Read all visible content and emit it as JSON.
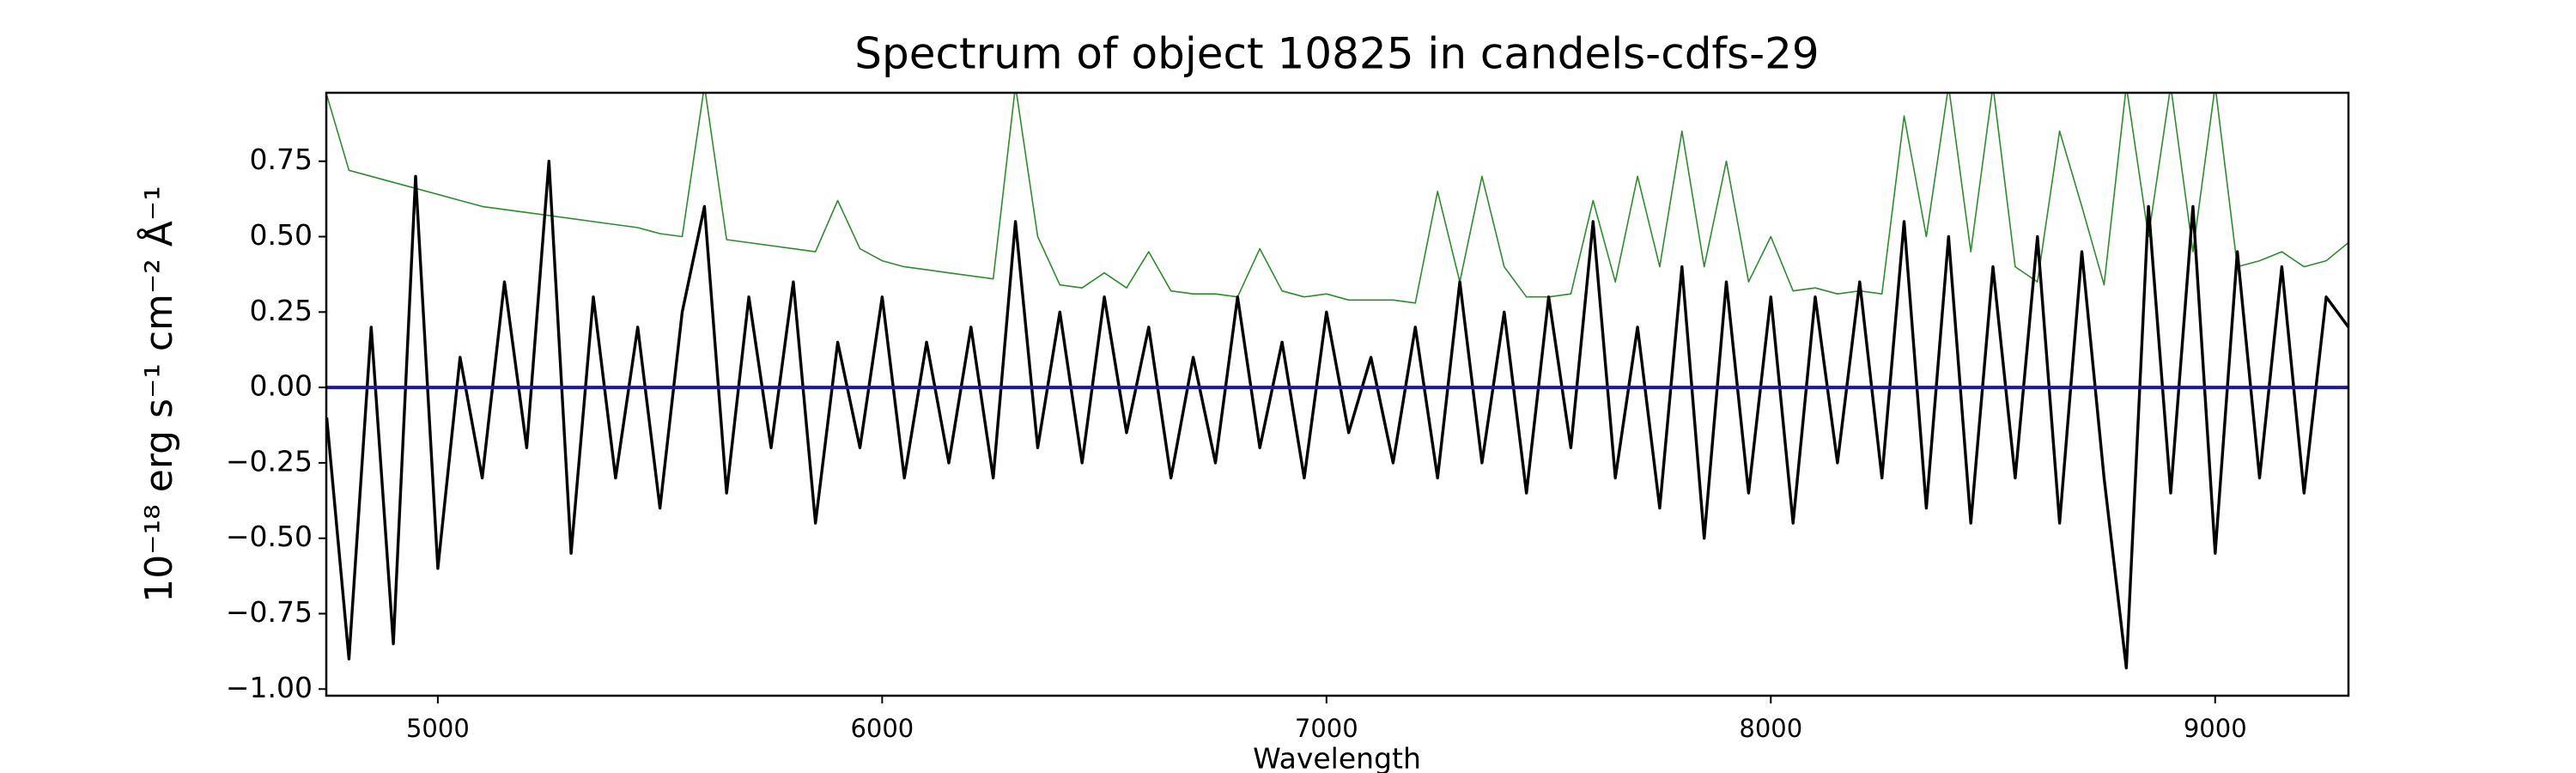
{
  "chart_data": {
    "type": "line",
    "title": "Spectrum of object 10825 in candels-cdfs-29",
    "xlabel": "Wavelength",
    "ylabel": "10⁻¹⁸ erg s⁻¹ cm⁻² Å⁻¹",
    "xlim": [
      4749,
      9300
    ],
    "ylim": [
      -1.022,
      0.977
    ],
    "xticks": [
      5000,
      6000,
      7000,
      8000,
      9000
    ],
    "yticks": [
      {
        "value": -1,
        "label": "−1.00"
      },
      {
        "value": -0.75,
        "label": "−0.75"
      },
      {
        "value": -0.5,
        "label": "−0.50"
      },
      {
        "value": -0.25,
        "label": "−0.25"
      },
      {
        "value": 0,
        "label": "0.00"
      },
      {
        "value": 0.25,
        "label": "0.25"
      },
      {
        "value": 0.5,
        "label": "0.50"
      },
      {
        "value": 0.75,
        "label": "0.75"
      }
    ],
    "grid": false,
    "series": [
      {
        "color": "#2e8b2e",
        "width": 1.6,
        "x": [
          4750,
          4800,
          4850,
          4900,
          4950,
          5000,
          5050,
          5100,
          5150,
          5200,
          5250,
          5300,
          5350,
          5400,
          5450,
          5500,
          5550,
          5600,
          5650,
          5700,
          5750,
          5800,
          5850,
          5900,
          5950,
          6000,
          6050,
          6100,
          6150,
          6200,
          6250,
          6300,
          6350,
          6400,
          6450,
          6500,
          6550,
          6600,
          6650,
          6700,
          6750,
          6800,
          6850,
          6900,
          6950,
          7000,
          7050,
          7100,
          7150,
          7200,
          7250,
          7300,
          7350,
          7400,
          7450,
          7500,
          7550,
          7600,
          7650,
          7700,
          7750,
          7800,
          7850,
          7900,
          7950,
          8000,
          8050,
          8100,
          8150,
          8200,
          8250,
          8300,
          8350,
          8400,
          8450,
          8500,
          8550,
          8600,
          8650,
          8700,
          8750,
          8800,
          8850,
          8900,
          8950,
          9000,
          9050,
          9100,
          9150,
          9200,
          9250,
          9300
        ],
        "values": [
          0.97,
          0.72,
          0.7,
          0.68,
          0.66,
          0.64,
          0.62,
          0.6,
          0.59,
          0.58,
          0.57,
          0.56,
          0.55,
          0.54,
          0.53,
          0.51,
          0.5,
          1.0,
          0.49,
          0.48,
          0.47,
          0.46,
          0.45,
          0.62,
          0.46,
          0.42,
          0.4,
          0.39,
          0.38,
          0.37,
          0.36,
          1.0,
          0.5,
          0.34,
          0.33,
          0.38,
          0.33,
          0.45,
          0.32,
          0.31,
          0.31,
          0.3,
          0.46,
          0.32,
          0.3,
          0.31,
          0.29,
          0.29,
          0.29,
          0.28,
          0.65,
          0.35,
          0.7,
          0.4,
          0.3,
          0.3,
          0.31,
          0.62,
          0.35,
          0.7,
          0.4,
          0.85,
          0.4,
          0.75,
          0.35,
          0.5,
          0.32,
          0.33,
          0.31,
          0.32,
          0.31,
          0.9,
          0.5,
          1.0,
          0.45,
          1.0,
          0.4,
          0.35,
          0.85,
          0.6,
          0.34,
          1.0,
          0.5,
          1.0,
          0.45,
          1.0,
          0.4,
          0.42,
          0.45,
          0.4,
          0.42,
          0.48
        ]
      },
      {
        "color": "#000000",
        "width": 3.4,
        "x": [
          4750,
          4800,
          4850,
          4900,
          4950,
          5000,
          5050,
          5100,
          5150,
          5200,
          5250,
          5300,
          5350,
          5400,
          5450,
          5500,
          5550,
          5600,
          5650,
          5700,
          5750,
          5800,
          5850,
          5900,
          5950,
          6000,
          6050,
          6100,
          6150,
          6200,
          6250,
          6300,
          6350,
          6400,
          6450,
          6500,
          6550,
          6600,
          6650,
          6700,
          6750,
          6800,
          6850,
          6900,
          6950,
          7000,
          7050,
          7100,
          7150,
          7200,
          7250,
          7300,
          7350,
          7400,
          7450,
          7500,
          7550,
          7600,
          7650,
          7700,
          7750,
          7800,
          7850,
          7900,
          7950,
          8000,
          8050,
          8100,
          8150,
          8200,
          8250,
          8300,
          8350,
          8400,
          8450,
          8500,
          8550,
          8600,
          8650,
          8700,
          8750,
          8800,
          8850,
          8900,
          8950,
          9000,
          9050,
          9100,
          9150,
          9200,
          9250,
          9300
        ],
        "values": [
          -0.1,
          -0.9,
          0.2,
          -0.85,
          0.7,
          -0.6,
          0.1,
          -0.3,
          0.35,
          -0.2,
          0.75,
          -0.55,
          0.3,
          -0.3,
          0.2,
          -0.4,
          0.25,
          0.6,
          -0.35,
          0.3,
          -0.2,
          0.35,
          -0.45,
          0.15,
          -0.2,
          0.3,
          -0.3,
          0.15,
          -0.25,
          0.2,
          -0.3,
          0.55,
          -0.2,
          0.25,
          -0.25,
          0.3,
          -0.15,
          0.2,
          -0.3,
          0.1,
          -0.25,
          0.3,
          -0.2,
          0.15,
          -0.3,
          0.25,
          -0.15,
          0.1,
          -0.25,
          0.2,
          -0.3,
          0.35,
          -0.25,
          0.25,
          -0.35,
          0.3,
          -0.2,
          0.55,
          -0.3,
          0.2,
          -0.4,
          0.4,
          -0.5,
          0.35,
          -0.35,
          0.3,
          -0.45,
          0.3,
          -0.25,
          0.35,
          -0.3,
          0.55,
          -0.4,
          0.5,
          -0.45,
          0.4,
          -0.3,
          0.5,
          -0.45,
          0.45,
          -0.3,
          -0.93,
          0.6,
          -0.35,
          0.6,
          -0.55,
          0.45,
          -0.3,
          0.4,
          -0.35,
          0.3,
          0.2
        ]
      },
      {
        "color": "#1a1aa0",
        "width": 4,
        "x": [
          4750,
          9300
        ],
        "values": [
          0,
          0
        ]
      }
    ]
  }
}
